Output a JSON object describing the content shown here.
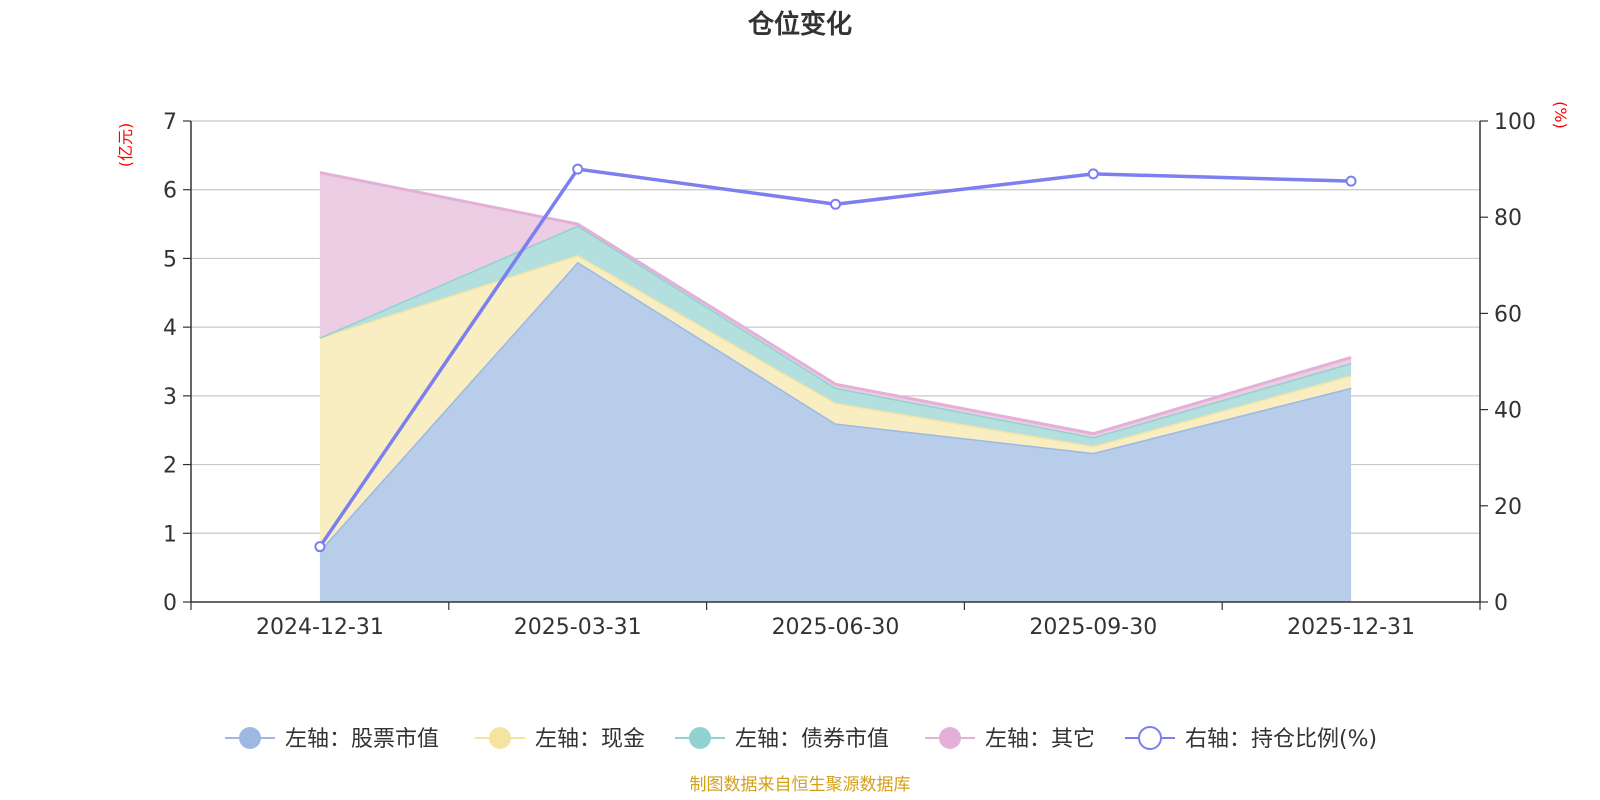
{
  "chart_data": {
    "type": "area",
    "title": "仓位变化",
    "source_note": "制图数据来自恒生聚源数据库",
    "categories": [
      "2024-12-31",
      "2025-03-31",
      "2025-06-30",
      "2025-09-30",
      "2025-12-31"
    ],
    "left_axis": {
      "unit": "(亿元)",
      "ylim": [
        0,
        7
      ],
      "ticks": [
        "0",
        "1",
        "2",
        "3",
        "4",
        "5",
        "6",
        "7"
      ],
      "grid": true
    },
    "right_axis": {
      "unit": "(%)",
      "ylim": [
        0,
        100
      ],
      "ticks": [
        "0",
        "20",
        "40",
        "60",
        "80",
        "100"
      ]
    },
    "stacked_series": [
      {
        "name": "左轴：股票市值",
        "axis": "left",
        "color": "#9db8e2",
        "fill": "#b8cdea",
        "values": [
          0.75,
          4.95,
          2.6,
          2.17,
          3.12
        ]
      },
      {
        "name": "左轴：现金",
        "axis": "left",
        "color": "#f5e3a0",
        "fill": "#f9edc2",
        "values": [
          3.1,
          0.1,
          0.3,
          0.1,
          0.18
        ]
      },
      {
        "name": "左轴：债券市值",
        "axis": "left",
        "color": "#92d1d1",
        "fill": "#b3dfde",
        "values": [
          0.0,
          0.43,
          0.22,
          0.13,
          0.18
        ]
      },
      {
        "name": "左轴：其它",
        "axis": "left",
        "color": "#e3b1d8",
        "fill": "#eccde4",
        "values": [
          2.4,
          0.02,
          0.05,
          0.05,
          0.08
        ]
      }
    ],
    "line_series": [
      {
        "name": "右轴：持仓比例(%)",
        "axis": "right",
        "color": "#7b7ff0",
        "values": [
          11.5,
          90.0,
          82.7,
          89.0,
          87.5
        ]
      }
    ]
  }
}
